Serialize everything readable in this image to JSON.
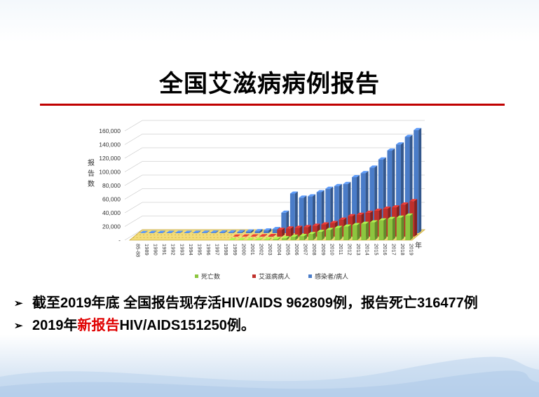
{
  "slide": {
    "title": "全国艾滋病病例报告",
    "bullets": [
      {
        "marker": "➢",
        "text": "截至2019年底 全国报告现存活HIV/AIDS 962809例，报告死亡316477例"
      },
      {
        "marker": "➢",
        "prefix": "2019年",
        "highlight": "新报告",
        "suffix": "HIV/AIDS151250例。"
      }
    ]
  },
  "chart_data": {
    "type": "bar",
    "subtype": "3d-grouped",
    "ylabel": "报告数",
    "xlabel": "年",
    "ylim": [
      0,
      160000
    ],
    "yticks": [
      "-",
      "20,000",
      "40,000",
      "60,000",
      "80,000",
      "100,000",
      "120,000",
      "140,000",
      "160,000"
    ],
    "grid": true,
    "legend_position": "bottom",
    "categories": [
      "85-88",
      "1989",
      "1990",
      "1991",
      "1992",
      "1993",
      "1994",
      "1995",
      "1996",
      "1997",
      "1998",
      "1999",
      "2000",
      "2001",
      "2002",
      "2003",
      "2004",
      "2005",
      "2006",
      "2007",
      "2008",
      "2009",
      "2010",
      "2011",
      "2012",
      "2013",
      "2014",
      "2015",
      "2016",
      "2017",
      "2018",
      "2019"
    ],
    "series": [
      {
        "name": "死亡数",
        "color": "#8cc63f",
        "values": [
          0,
          0,
          0,
          0,
          0,
          0,
          0,
          0,
          0,
          0,
          0,
          100,
          200,
          300,
          500,
          800,
          1500,
          3000,
          5000,
          6000,
          9000,
          12000,
          15000,
          18000,
          20000,
          22000,
          24000,
          26000,
          29000,
          31000,
          33000,
          36000
        ]
      },
      {
        "name": "艾滋病病人",
        "color": "#c0302b",
        "values": [
          0,
          0,
          0,
          0,
          0,
          0,
          0,
          0,
          0,
          0,
          0,
          100,
          200,
          400,
          600,
          1000,
          10000,
          12000,
          13000,
          14000,
          16000,
          18000,
          20000,
          25000,
          30000,
          32000,
          35000,
          38000,
          41000,
          43000,
          47000,
          52000
        ]
      },
      {
        "name": "感染者/病人",
        "color": "#4a7cc8",
        "values": [
          300,
          500,
          500,
          500,
          500,
          500,
          600,
          800,
          900,
          1000,
          1200,
          1500,
          2500,
          3000,
          4000,
          6000,
          30000,
          58000,
          52000,
          54000,
          60000,
          65000,
          69000,
          72000,
          82000,
          88000,
          96000,
          108000,
          121000,
          130000,
          141000,
          151000
        ]
      }
    ]
  }
}
